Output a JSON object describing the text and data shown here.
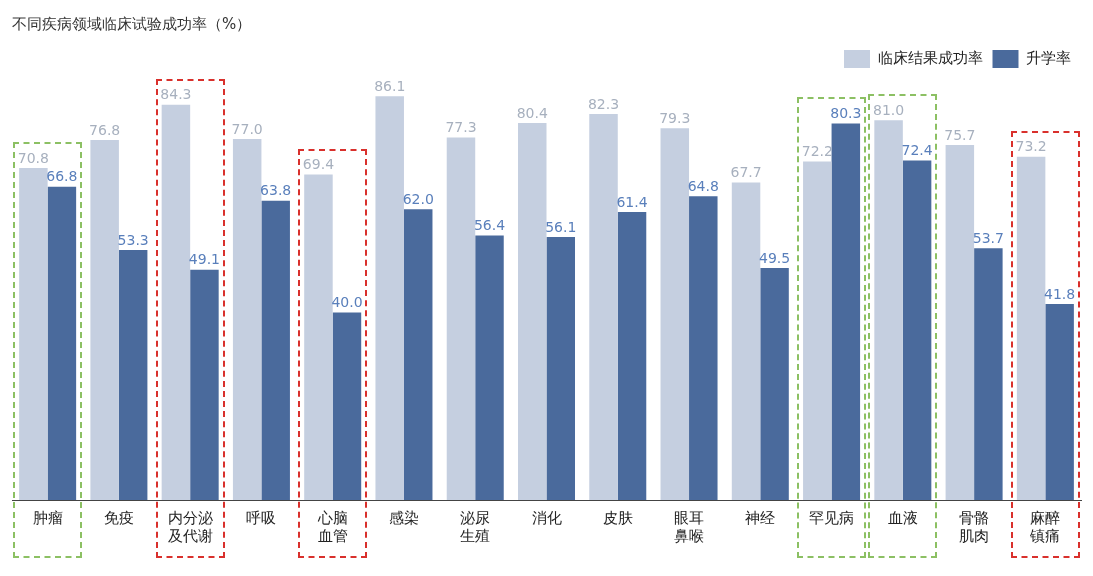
{
  "chart_data": {
    "type": "bar",
    "title": "不同疾病领域临床试验成功率（%）",
    "categories": [
      "肿瘤",
      "免疫",
      "内分泌及代谢",
      "呼吸",
      "心脑血管",
      "感染",
      "泌尿生殖",
      "消化",
      "皮肤",
      "眼耳鼻喉",
      "神经",
      "罕见病",
      "血液",
      "骨骼肌肉",
      "麻醉镇痛"
    ],
    "series": [
      {
        "name": "临床结果成功率",
        "color": "#c5cfe0",
        "values": [
          70.8,
          76.8,
          84.3,
          77.0,
          69.4,
          86.1,
          77.3,
          80.4,
          82.3,
          79.3,
          67.7,
          72.2,
          81.0,
          75.7,
          73.2
        ],
        "value_labels": [
          "70.8",
          "76.8",
          "84.3",
          "77.0",
          "69.4",
          "86.1",
          "77.3",
          "80.4",
          "82.3",
          "79.3",
          "67.7",
          "72.2",
          "81.0",
          "75.7",
          "73.2"
        ]
      },
      {
        "name": "升学率",
        "color": "#4a6a9c",
        "values": [
          66.8,
          53.3,
          49.1,
          63.8,
          40.0,
          62.0,
          56.4,
          56.1,
          61.4,
          64.8,
          49.5,
          80.3,
          72.4,
          53.7,
          41.8
        ],
        "value_labels": [
          "66.8",
          "53.3",
          "49.1",
          "63.8",
          "40.0",
          "62.0",
          "56.4",
          "56.1",
          "61.4",
          "64.8",
          "49.5",
          "80.3",
          "72.4",
          "53.7",
          "41.8"
        ]
      }
    ],
    "legend": "top right"
  }
}
